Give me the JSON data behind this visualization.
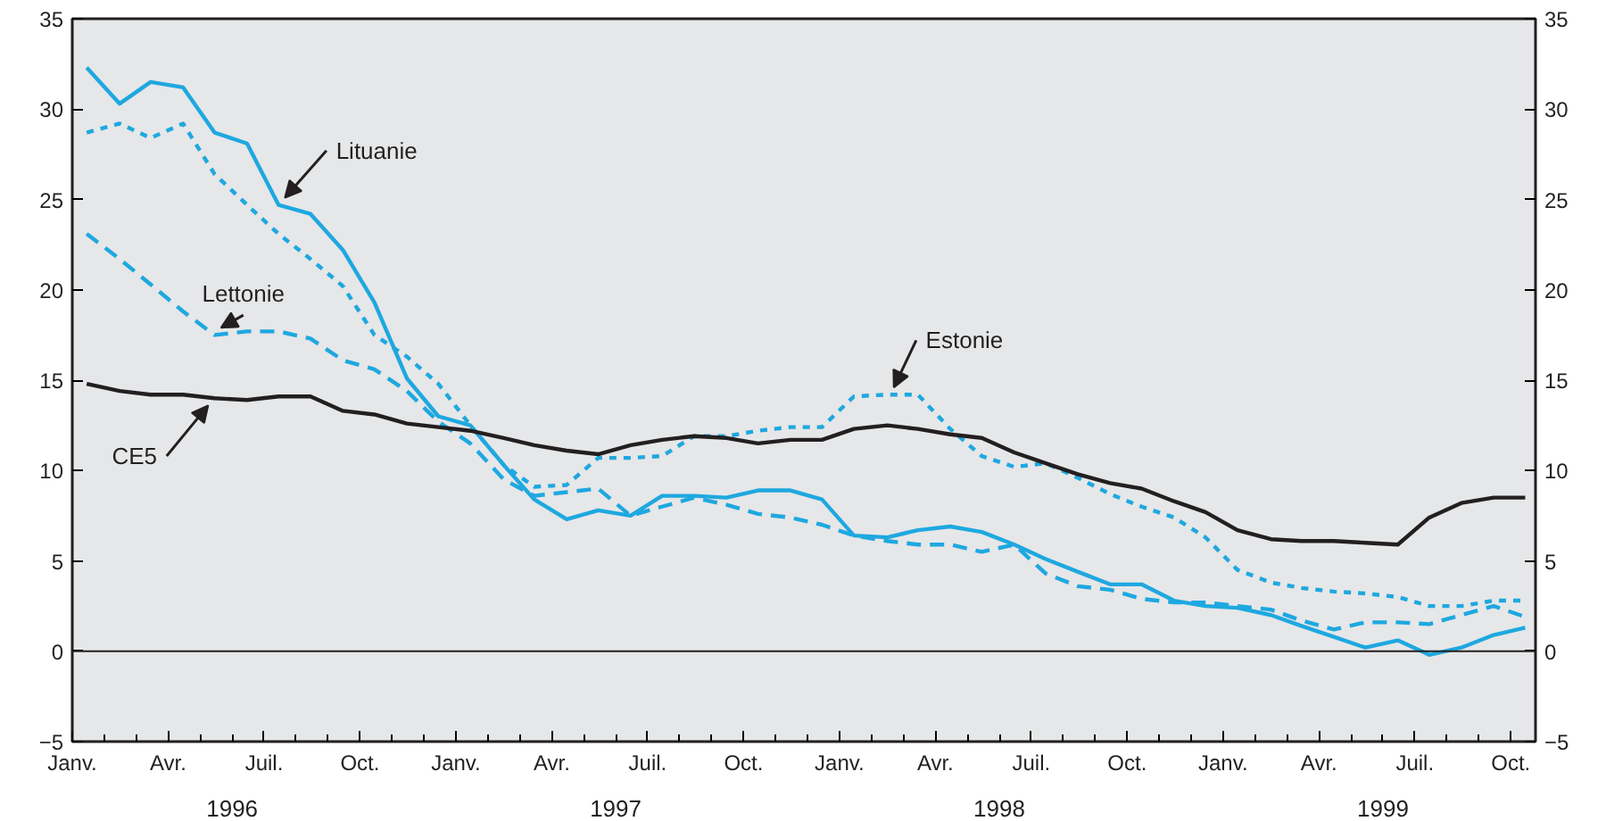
{
  "chart_data": {
    "type": "line",
    "x": [
      "1996-01-15",
      "1996-02-15",
      "1996-03-15",
      "1996-04-15",
      "1996-05-15",
      "1996-06-15",
      "1996-07-15",
      "1996-08-15",
      "1996-09-15",
      "1996-10-15",
      "1996-11-15",
      "1996-12-15",
      "1997-01-15",
      "1997-02-15",
      "1997-03-15",
      "1997-04-15",
      "1997-05-15",
      "1997-06-15",
      "1997-07-15",
      "1997-08-15",
      "1997-09-15",
      "1997-10-15",
      "1997-11-15",
      "1997-12-15",
      "1998-01-15",
      "1998-02-15",
      "1998-03-15",
      "1998-04-15",
      "1998-05-15",
      "1998-06-15",
      "1998-07-15",
      "1998-08-15",
      "1998-09-15",
      "1998-10-15",
      "1998-11-15",
      "1998-12-15",
      "1999-01-15",
      "1999-02-15",
      "1999-03-15",
      "1999-04-15",
      "1999-05-15",
      "1999-06-15",
      "1999-07-15",
      "1999-08-15",
      "1999-09-15",
      "1999-10-15"
    ],
    "series": [
      {
        "name": "Lituanie",
        "color": "#1ea8e0",
        "line_style": "solid",
        "values": [
          32.3,
          30.3,
          31.5,
          31.2,
          28.7,
          28.1,
          24.7,
          24.2,
          22.2,
          19.3,
          15.1,
          13.0,
          12.5,
          10.3,
          8.4,
          7.3,
          7.8,
          7.5,
          8.6,
          8.6,
          8.5,
          8.9,
          8.9,
          8.4,
          6.4,
          6.3,
          6.7,
          6.9,
          6.6,
          5.9,
          5.1,
          4.4,
          3.7,
          3.7,
          2.8,
          2.5,
          2.4,
          2.0,
          1.4,
          0.8,
          0.2,
          0.6,
          -0.2,
          0.2,
          0.9,
          1.3
        ]
      },
      {
        "name": "Lettonie",
        "color": "#1ea8e0",
        "line_style": "dashed",
        "values": [
          23.1,
          21.7,
          20.3,
          18.8,
          17.5,
          17.7,
          17.7,
          17.3,
          16.1,
          15.6,
          14.4,
          12.7,
          11.5,
          9.5,
          8.6,
          8.8,
          9.0,
          7.5,
          8.0,
          8.5,
          8.1,
          7.6,
          7.4,
          7.0,
          6.4,
          6.1,
          5.9,
          5.9,
          5.5,
          5.9,
          4.3,
          3.6,
          3.4,
          2.9,
          2.7,
          2.7,
          2.5,
          2.3,
          1.7,
          1.2,
          1.6,
          1.6,
          1.5,
          2.0,
          2.5,
          1.9
        ]
      },
      {
        "name": "Estonie",
        "color": "#1ea8e0",
        "line_style": "dotted",
        "values": [
          28.7,
          29.2,
          28.4,
          29.2,
          26.4,
          24.7,
          23.1,
          21.7,
          20.2,
          17.5,
          16.3,
          14.8,
          12.5,
          10.3,
          9.1,
          9.2,
          10.7,
          10.7,
          10.8,
          11.9,
          11.9,
          12.2,
          12.4,
          12.4,
          14.1,
          14.2,
          14.2,
          12.3,
          10.8,
          10.2,
          10.4,
          9.6,
          8.7,
          8.0,
          7.4,
          6.3,
          4.5,
          3.8,
          3.5,
          3.3,
          3.2,
          3.0,
          2.5,
          2.5,
          2.8,
          2.8
        ]
      },
      {
        "name": "CE5",
        "color": "#231f20",
        "line_style": "solid",
        "values": [
          14.8,
          14.4,
          14.2,
          14.2,
          14.0,
          13.9,
          14.1,
          14.1,
          13.3,
          13.1,
          12.6,
          12.4,
          12.2,
          11.8,
          11.4,
          11.1,
          10.9,
          11.4,
          11.7,
          11.9,
          11.8,
          11.5,
          11.7,
          11.7,
          12.3,
          12.5,
          12.3,
          12.0,
          11.8,
          11.0,
          10.4,
          9.8,
          9.3,
          9.0,
          8.3,
          7.7,
          6.7,
          6.2,
          6.1,
          6.1,
          6.0,
          5.9,
          7.4,
          8.2,
          8.5,
          8.5
        ]
      }
    ],
    "xlim": [
      "1996-01-01",
      "1999-10-25"
    ],
    "xticks": [
      {
        "value": "1996-01-01",
        "label": "Janv."
      },
      {
        "value": "1996-02-01",
        "label": null
      },
      {
        "value": "1996-03-01",
        "label": null
      },
      {
        "value": "1996-04-01",
        "label": "Avr."
      },
      {
        "value": "1996-05-01",
        "label": null
      },
      {
        "value": "1996-06-01",
        "label": null
      },
      {
        "value": "1996-07-01",
        "label": "Juil."
      },
      {
        "value": "1996-08-01",
        "label": null
      },
      {
        "value": "1996-09-01",
        "label": null
      },
      {
        "value": "1996-10-01",
        "label": "Oct."
      },
      {
        "value": "1996-11-01",
        "label": null
      },
      {
        "value": "1996-12-01",
        "label": null
      },
      {
        "value": "1997-01-01",
        "label": "Janv."
      },
      {
        "value": "1997-02-01",
        "label": null
      },
      {
        "value": "1997-03-01",
        "label": null
      },
      {
        "value": "1997-04-01",
        "label": "Avr."
      },
      {
        "value": "1997-05-01",
        "label": null
      },
      {
        "value": "1997-06-01",
        "label": null
      },
      {
        "value": "1997-07-01",
        "label": "Juil."
      },
      {
        "value": "1997-08-01",
        "label": null
      },
      {
        "value": "1997-09-01",
        "label": null
      },
      {
        "value": "1997-10-01",
        "label": "Oct."
      },
      {
        "value": "1997-11-01",
        "label": null
      },
      {
        "value": "1997-12-01",
        "label": null
      },
      {
        "value": "1998-01-01",
        "label": "Janv."
      },
      {
        "value": "1998-02-01",
        "label": null
      },
      {
        "value": "1998-03-01",
        "label": null
      },
      {
        "value": "1998-04-01",
        "label": "Avr."
      },
      {
        "value": "1998-05-01",
        "label": null
      },
      {
        "value": "1998-06-01",
        "label": null
      },
      {
        "value": "1998-07-01",
        "label": "Juil."
      },
      {
        "value": "1998-08-01",
        "label": null
      },
      {
        "value": "1998-09-01",
        "label": null
      },
      {
        "value": "1998-10-01",
        "label": "Oct."
      },
      {
        "value": "1998-11-01",
        "label": null
      },
      {
        "value": "1998-12-01",
        "label": null
      },
      {
        "value": "1999-01-01",
        "label": "Janv."
      },
      {
        "value": "1999-02-01",
        "label": null
      },
      {
        "value": "1999-03-01",
        "label": null
      },
      {
        "value": "1999-04-01",
        "label": "Avr."
      },
      {
        "value": "1999-05-01",
        "label": null
      },
      {
        "value": "1999-06-01",
        "label": null
      },
      {
        "value": "1999-07-01",
        "label": "Juil."
      },
      {
        "value": "1999-08-01",
        "label": null
      },
      {
        "value": "1999-09-01",
        "label": null
      },
      {
        "value": "1999-10-01",
        "label": "Oct."
      }
    ],
    "ylim": [
      -5,
      35
    ],
    "yticks": [
      -5,
      0,
      5,
      10,
      15,
      20,
      25,
      30,
      35
    ],
    "y2lim": [
      -5,
      35
    ],
    "y2ticks": [
      -5,
      0,
      5,
      10,
      15,
      20,
      25,
      30,
      35
    ],
    "ref_lines": [
      {
        "axis": "y",
        "value": 0,
        "color": "#231f20"
      }
    ],
    "annotations": [
      "1996",
      "1997",
      "1998",
      "1999"
    ],
    "grid": false
  }
}
